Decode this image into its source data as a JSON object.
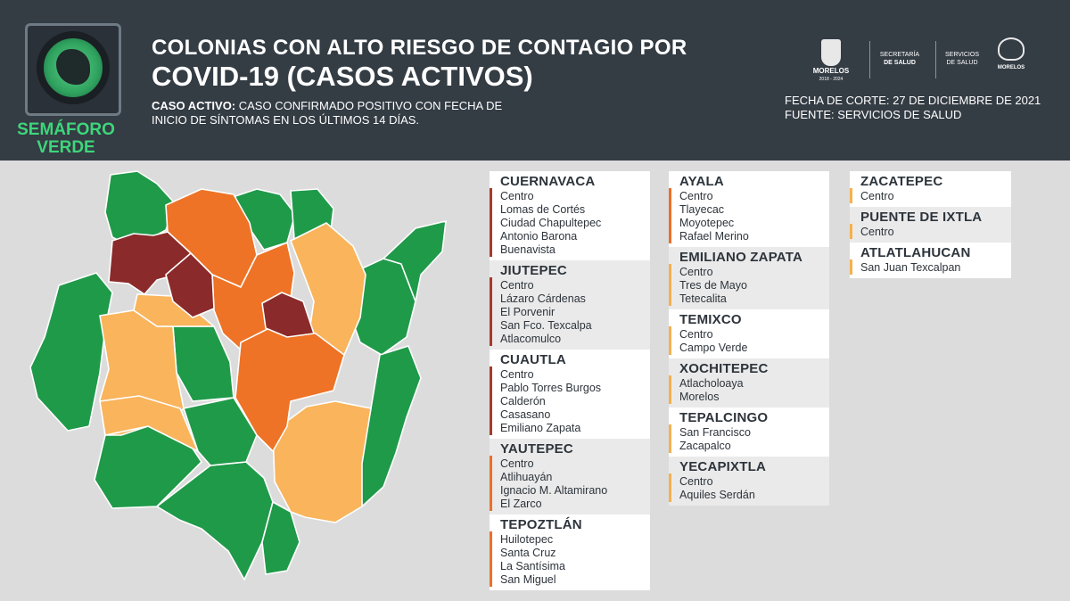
{
  "header": {
    "badge": {
      "line1": "SEMÁFORO",
      "line2": "VERDE"
    },
    "title_line1": "COLONIAS CON ALTO RIESGO DE CONTAGIO POR",
    "title_line2": "COVID-19 (CASOS ACTIVOS)",
    "definition_label": "CASO ACTIVO:",
    "definition_text1": " CASO CONFIRMADO POSITIVO CON FECHA DE",
    "definition_text2": "INICIO DE SÍNTOMAS EN LOS ÚLTIMOS 14 DÍAS.",
    "logos": {
      "morelos": "MORELOS",
      "morelos_years": "2018 - 2024",
      "secretaria_line1": "SECRETARÍA",
      "secretaria_line2": "DE SALUD",
      "servicios_line1": "SERVICIOS",
      "servicios_line2": "DE SALUD",
      "morelos2": "MORELOS"
    },
    "fecha_corte": "FECHA DE CORTE: 27 DE DICIEMBRE DE 2021",
    "fuente": "FUENTE: SERVICIOS DE SALUD"
  },
  "colors": {
    "header_bg": "#343c44",
    "green": "#1f9a49",
    "light_orange": "#f9b45c",
    "orange": "#ee7326",
    "dark_red": "#8b2a2a",
    "bar_red": "#a83a2a",
    "bar_orange": "#ec6f27",
    "bar_light_orange": "#f4b14e"
  },
  "columns": [
    [
      {
        "name": "CUERNAVACA",
        "level": "red",
        "bg": "white",
        "items": [
          "Centro",
          "Lomas de Cortés",
          "Ciudad Chapultepec",
          "Antonio Barona",
          "Buenavista"
        ]
      },
      {
        "name": "JIUTEPEC",
        "level": "red",
        "bg": "grey",
        "items": [
          "Centro",
          "Lázaro Cárdenas",
          "El Porvenir",
          "San Fco. Texcalpa",
          "Atlacomulco"
        ]
      },
      {
        "name": "CUAUTLA",
        "level": "red",
        "bg": "white",
        "items": [
          "Centro",
          "Pablo Torres Burgos",
          "Calderón",
          "Casasano",
          "Emiliano Zapata"
        ]
      },
      {
        "name": "YAUTEPEC",
        "level": "orange",
        "bg": "grey",
        "items": [
          "Centro",
          "Atlihuayán",
          "Ignacio M. Altamirano",
          "El Zarco"
        ]
      },
      {
        "name": "TEPOZTLÁN",
        "level": "orange",
        "bg": "white",
        "items": [
          "Huilotepec",
          "Santa Cruz",
          "La Santísima",
          "San Miguel"
        ]
      }
    ],
    [
      {
        "name": "AYALA",
        "level": "orange",
        "bg": "white",
        "items": [
          "Centro",
          "Tlayecac",
          "Moyotepec",
          "Rafael Merino"
        ]
      },
      {
        "name": "EMILIANO ZAPATA",
        "level": "light",
        "bg": "grey",
        "items": [
          "Centro",
          "Tres de Mayo",
          "Tetecalita"
        ]
      },
      {
        "name": "TEMIXCO",
        "level": "light",
        "bg": "white",
        "items": [
          "Centro",
          "Campo Verde"
        ]
      },
      {
        "name": "XOCHITEPEC",
        "level": "light",
        "bg": "grey",
        "items": [
          "Atlacholoaya",
          "Morelos"
        ]
      },
      {
        "name": "TEPALCINGO",
        "level": "light",
        "bg": "white",
        "items": [
          "San Francisco",
          "Zacapalco"
        ]
      },
      {
        "name": "YECAPIXTLA",
        "level": "light",
        "bg": "grey",
        "items": [
          "Centro",
          "Aquiles Serdán"
        ]
      }
    ],
    [
      {
        "name": "ZACATEPEC",
        "level": "light",
        "bg": "white",
        "items": [
          "Centro"
        ]
      },
      {
        "name": "PUENTE DE IXTLA",
        "level": "light",
        "bg": "grey",
        "items": [
          "Centro"
        ]
      },
      {
        "name": "ATLATLAHUCAN",
        "level": "light",
        "bg": "white",
        "items": [
          "San Juan Texcalpan"
        ]
      }
    ]
  ]
}
